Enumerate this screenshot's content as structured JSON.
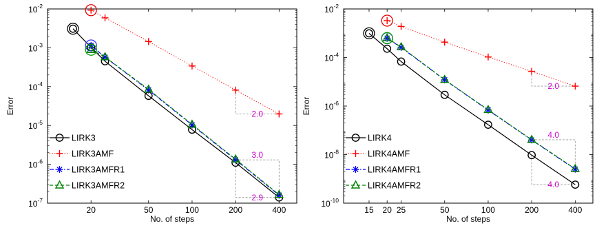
{
  "colors": {
    "black": "#000000",
    "red": "#ff0000",
    "blue": "#0000ff",
    "green": "#008000",
    "magenta": "#cc00cc",
    "guide": "#999999",
    "ring_red": "#e60000",
    "ring_blue": "#3333ff",
    "ring_green": "#009900"
  },
  "chart_data": [
    {
      "type": "line",
      "log_x": true,
      "log_y": true,
      "xlabel": "No. of steps",
      "ylabel": "Error",
      "xlim": [
        10,
        530
      ],
      "ylim_exponents": [
        -7,
        -2
      ],
      "xticks": [
        20,
        50,
        100,
        200,
        400
      ],
      "xtick_labels": [
        "20",
        "50",
        "100",
        "200",
        "400"
      ],
      "yticks_exponents": [
        -7,
        -6,
        -5,
        -4,
        -3,
        -2
      ],
      "ytick_labels": [
        "10",
        "10",
        "10",
        "10",
        "10",
        "10"
      ],
      "ytick_exponent_labels": [
        "-7",
        "-6",
        "-5",
        "-4",
        "-3",
        "-2"
      ],
      "legend_position": "bottom-left",
      "grid": false,
      "series": [
        {
          "name": "LIRK3",
          "color": "#000000",
          "marker": "circle",
          "linestyle": "solid",
          "x": [
            15,
            20,
            25,
            50,
            100,
            200,
            400
          ],
          "y": [
            0.0031,
            0.00103,
            0.00045,
            5.8e-05,
            7.8e-06,
            1.1e-06,
            1.4e-07
          ],
          "circled": true
        },
        {
          "name": "LIRK3AMF",
          "color": "#ff0000",
          "marker": "plus",
          "linestyle": "dotted",
          "x": [
            20,
            25,
            50,
            100,
            200,
            400
          ],
          "y": [
            0.0093,
            0.0059,
            0.00145,
            0.00034,
            8.15e-05,
            1.98e-05
          ],
          "circled": true
        },
        {
          "name": "LIRK3AMFR1",
          "color": "#0000ff",
          "marker": "star",
          "linestyle": "dashdot",
          "x": [
            20,
            25,
            50,
            100,
            200,
            400
          ],
          "y": [
            0.00115,
            0.00057,
            8.2e-05,
            1.03e-05,
            1.3e-06,
            1.6e-07
          ],
          "circled": true
        },
        {
          "name": "LIRK3AMFR2",
          "color": "#008000",
          "marker": "triangle",
          "linestyle": "dashed",
          "x": [
            20,
            25,
            50,
            100,
            200,
            400
          ],
          "y": [
            0.00089,
            0.00058,
            8.5e-05,
            1.06e-05,
            1.35e-06,
            1.65e-07
          ],
          "circled": true
        }
      ],
      "annotations": [
        {
          "text": "2.0",
          "color": "#cc00cc",
          "slope_x": [
            200,
            400
          ],
          "slope_y": [
            8.15e-05,
            1.98e-05
          ],
          "anchor": "low"
        },
        {
          "text": "3.0",
          "color": "#cc00cc",
          "slope_x": [
            200,
            400
          ],
          "slope_y": [
            1.3e-06,
            1.6e-07
          ],
          "anchor": "high"
        },
        {
          "text": "2.9",
          "color": "#cc00cc",
          "slope_x": [
            200,
            400
          ],
          "slope_y": [
            1.1e-06,
            1.4e-07
          ],
          "anchor": "low"
        }
      ]
    },
    {
      "type": "line",
      "log_x": true,
      "log_y": true,
      "xlabel": "No. of steps",
      "ylabel": "Error",
      "xlim": [
        10,
        530
      ],
      "ylim_exponents": [
        -10,
        -2
      ],
      "xticks": [
        15,
        20,
        25,
        50,
        100,
        200,
        400
      ],
      "xtick_labels": [
        "15",
        "20",
        "25",
        "50",
        "100",
        "200",
        "400"
      ],
      "yticks_exponents": [
        -10,
        -8,
        -6,
        -4,
        -2
      ],
      "ytick_labels": [
        "10",
        "10",
        "10",
        "10",
        "10"
      ],
      "ytick_exponent_labels": [
        "-10",
        "-8",
        "-6",
        "-4",
        "-2"
      ],
      "legend_position": "bottom-left",
      "grid": false,
      "series": [
        {
          "name": "LIRK4",
          "color": "#000000",
          "marker": "circle",
          "linestyle": "solid",
          "x": [
            15,
            20,
            25,
            50,
            100,
            200,
            400
          ],
          "y": [
            0.00099,
            0.00023,
            6.8e-05,
            2.9e-06,
            1.7e-07,
            9.5e-09,
            5.8e-10
          ],
          "circled": true
        },
        {
          "name": "LIRK4AMF",
          "color": "#ff0000",
          "marker": "plus",
          "linestyle": "dotted",
          "x": [
            20,
            25,
            50,
            100,
            200,
            400
          ],
          "y": [
            0.0033,
            0.0019,
            0.00043,
            0.000105,
            2.7e-05,
            6.6e-06
          ],
          "circled": true
        },
        {
          "name": "LIRK4AMFR1",
          "color": "#0000ff",
          "marker": "star",
          "linestyle": "dashdot",
          "x": [
            20,
            25,
            50,
            100,
            200,
            400
          ],
          "y": [
            0.00062,
            0.00026,
            1.2e-05,
            6.8e-07,
            4e-08,
            2.5e-09
          ],
          "circled": true
        },
        {
          "name": "LIRK4AMFR2",
          "color": "#008000",
          "marker": "triangle",
          "linestyle": "dashed",
          "x": [
            20,
            25,
            50,
            100,
            200,
            400
          ],
          "y": [
            0.00063,
            0.00027,
            1.22e-05,
            7e-07,
            4.1e-08,
            2.6e-09
          ],
          "circled": true
        }
      ],
      "annotations": [
        {
          "text": "2.0",
          "color": "#cc00cc",
          "slope_x": [
            200,
            400
          ],
          "slope_y": [
            2.7e-05,
            6.6e-06
          ],
          "anchor": "low"
        },
        {
          "text": "4.0",
          "color": "#cc00cc",
          "slope_x": [
            200,
            400
          ],
          "slope_y": [
            4.1e-08,
            2.6e-09
          ],
          "anchor": "high"
        },
        {
          "text": "4.0",
          "color": "#cc00cc",
          "slope_x": [
            200,
            400
          ],
          "slope_y": [
            9.5e-09,
            5.8e-10
          ],
          "anchor": "low"
        }
      ]
    }
  ]
}
